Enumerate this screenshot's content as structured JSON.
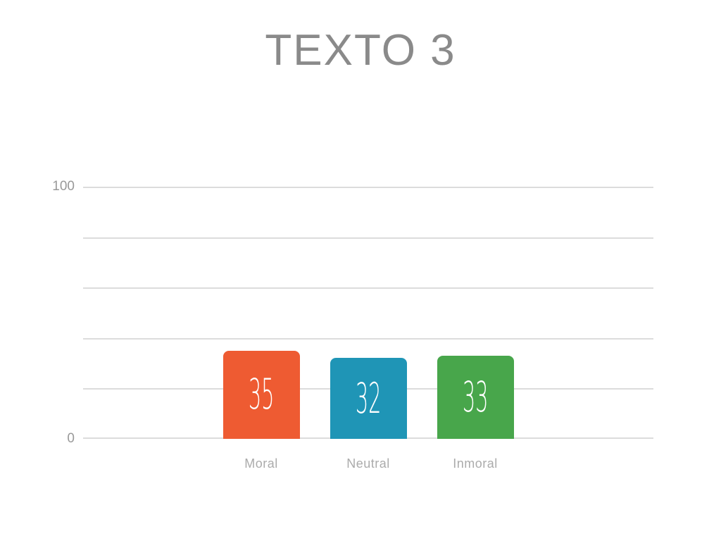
{
  "page_title": "TEXTO 3",
  "chart_data": {
    "type": "bar",
    "title": "TEXTO 3",
    "categories": [
      "Moral",
      "Neutral",
      "Inmoral"
    ],
    "values": [
      35,
      32,
      33
    ],
    "value_labels": [
      "35",
      "32",
      "33"
    ],
    "bar_colors": [
      "#EE5B32",
      "#1F95B6",
      "#48A64B"
    ],
    "ylim": [
      0,
      100
    ],
    "gridline_values": [
      0,
      20,
      40,
      60,
      80,
      100
    ],
    "ytick_labels": [
      {
        "value": 100,
        "label": "100"
      },
      {
        "value": 0,
        "label": "0"
      }
    ],
    "grid": true,
    "legend": false,
    "xlabel": "",
    "ylabel": "",
    "colors": {
      "title_text": "#8a8a8a",
      "axis_tick_text": "#999999",
      "category_text": "#ababab",
      "gridline": "#dcdcdc",
      "value_text": "#ffffff",
      "background": "#ffffff"
    }
  }
}
